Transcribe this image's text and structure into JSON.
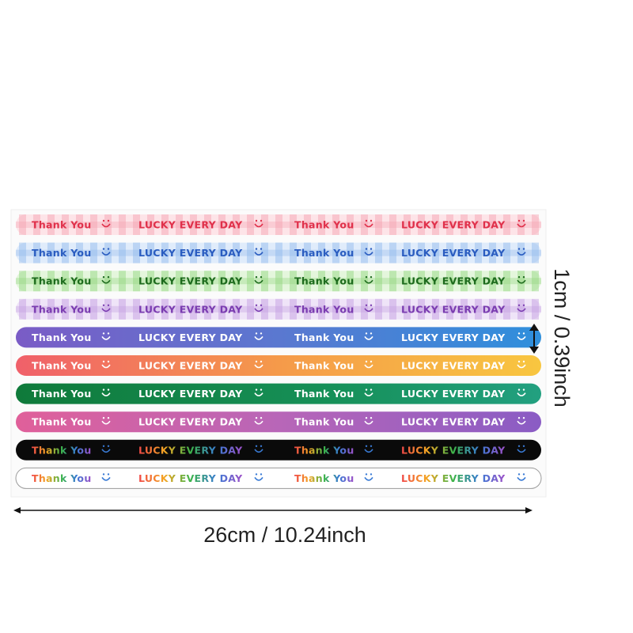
{
  "strips": [
    {
      "texts": [
        "Thank You",
        "LUCKY EVERY DAY",
        "Thank You",
        "LUCKY EVERY DAY"
      ]
    },
    {
      "texts": [
        "Thank You",
        "LUCKY EVERY DAY",
        "Thank You",
        "LUCKY EVERY DAY"
      ]
    },
    {
      "texts": [
        "Thank You",
        "LUCKY EVERY DAY",
        "Thank You",
        "LUCKY EVERY DAY"
      ]
    },
    {
      "texts": [
        "Thank You",
        "LUCKY EVERY DAY",
        "Thank You",
        "LUCKY EVERY DAY"
      ]
    },
    {
      "texts": [
        "Thank You",
        "LUCKY EVERY DAY",
        "Thank You",
        "LUCKY EVERY DAY"
      ]
    },
    {
      "texts": [
        "Thank You",
        "LUCKY EVERY DAY",
        "Thank You",
        "LUCKY EVERY DAY"
      ]
    },
    {
      "texts": [
        "Thank You",
        "LUCKY EVERY DAY",
        "Thank You",
        "LUCKY EVERY DAY"
      ]
    },
    {
      "texts": [
        "Thank You",
        "LUCKY EVERY DAY",
        "Thank You",
        "LUCKY EVERY DAY"
      ]
    },
    {
      "texts": [
        "Thank You",
        "LUCKY EVERY DAY",
        "Thank You",
        "LUCKY EVERY DAY"
      ]
    },
    {
      "texts": [
        "Thank You",
        "LUCKY EVERY DAY",
        "Thank You",
        "LUCKY EVERY DAY"
      ]
    }
  ],
  "height_label": "1cm / 0.39inch",
  "width_label": "26cm / 10.24inch"
}
